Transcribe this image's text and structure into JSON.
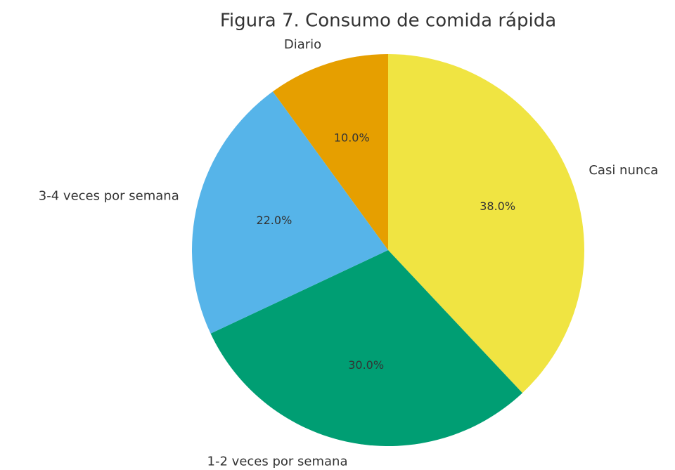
{
  "chart_data": {
    "type": "pie",
    "title": "Figura 7. Consumo de comida rápida",
    "categories": [
      "Casi nunca",
      "1-2 veces por semana",
      "3-4 veces por semana",
      "Diario"
    ],
    "values": [
      38,
      30,
      22,
      10
    ],
    "value_labels": [
      "38.0%",
      "30.0%",
      "22.0%",
      "10.0%"
    ],
    "colors": [
      "#f0e442",
      "#009e73",
      "#56b4e9",
      "#e69f00"
    ]
  }
}
